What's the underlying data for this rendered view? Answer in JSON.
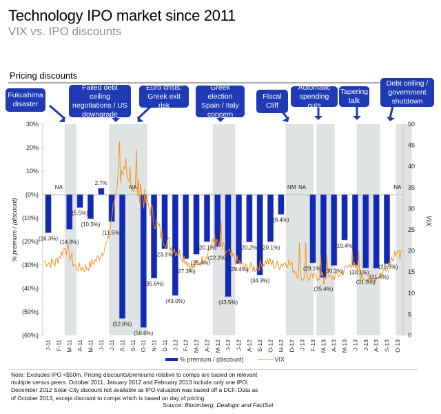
{
  "header": {
    "title": "Technology IPO market since 2011",
    "subtitle": "VIX vs. IPO discounts",
    "section": "Pricing discounts"
  },
  "colors": {
    "bar": "#1229b3",
    "vix": "#f7941d",
    "shade": "#dfe3e3",
    "callout": "#1e3ab4"
  },
  "callouts": [
    {
      "text": "Fukushima disaster",
      "lines": [
        "Fukushima",
        "disaster"
      ],
      "month": "M-11"
    },
    {
      "text": "Failed debt ceiling negotiations / US downgrade",
      "lines": [
        "Failed debt ceiling",
        "negotiations / US",
        "downgrade"
      ],
      "month": "A-11"
    },
    {
      "text": "Euro crisis: Greek exit risk",
      "lines": [
        "Euro crisis:",
        "Greek exit risk"
      ],
      "month": "S-11"
    },
    {
      "text": "Greek election Spain / Italy concern",
      "lines": [
        "Greek election",
        "Spain / Italy",
        "concern"
      ],
      "month": "M-12"
    },
    {
      "text": "Fiscal Cliff",
      "lines": [
        "Fiscal",
        "Cliff"
      ],
      "month": "D-12"
    },
    {
      "text": "Automatic spending cuts",
      "lines": [
        "Automatic",
        "spending cuts"
      ],
      "month": "M-13"
    },
    {
      "text": "Tapering talk",
      "lines": [
        "Tapering",
        "talk"
      ],
      "month": "J-13"
    },
    {
      "text": "Debt ceiling / government shutdown",
      "lines": [
        "Debt ceiling /",
        "government",
        "shutdown"
      ],
      "month": "O-13"
    }
  ],
  "legend": {
    "bar_label": "% premium / (discount)",
    "line_label": "VIX"
  },
  "note": "Note: Excludes IPO <$50m. Pricing discounts/premiums relative to comps are based on relevant multiple versus peers. October 2011, January 2012  and February 2013 include only one IPO. December 2012 Solar-City discount not available as IPO valuation was based off a DCF. Data as of October 2013, except discount to comps which is based on day of pricing.",
  "source": "Source: Bloomberg, Dealogic and FactSet",
  "chart_data": {
    "type": "bar",
    "title": "VIX vs. IPO discounts",
    "xlabel": "",
    "ylabel": "% premium / (discount)",
    "y2label": "VIX",
    "ylim": [
      -60,
      30
    ],
    "y2lim": [
      0,
      50
    ],
    "yticks": [
      "30%",
      "20%",
      "10%",
      "(0%)",
      "(10%)",
      "(20%)",
      "(30%)",
      "(40%)",
      "(50%)",
      "(60%)"
    ],
    "y2ticks": [
      "50",
      "45",
      "40",
      "35",
      "30",
      "25",
      "20",
      "15",
      "10",
      "5",
      "0"
    ],
    "grid": false,
    "legend_position": "bottom",
    "categories": [
      "J-11",
      "F-11",
      "M-11",
      "A-11",
      "M-11",
      "J-11",
      "J-11",
      "A-11",
      "S-11",
      "O-11",
      "N-11",
      "D-11",
      "J-12",
      "F-12",
      "M-12",
      "A-12",
      "M-12",
      "J-12",
      "J-12",
      "A-12",
      "S-12",
      "O-12",
      "N-12",
      "D-12",
      "J-13",
      "F-13",
      "M-13",
      "A-13",
      "M-13",
      "J-13",
      "J-13",
      "A-13",
      "S-13",
      "O-13"
    ],
    "series": [
      {
        "name": "% premium / (discount)",
        "type": "bar",
        "axis": "left",
        "values": [
          -16.3,
          null,
          -14.8,
          -5.5,
          -10.3,
          2.7,
          -11.5,
          -52.8,
          null,
          -56.6,
          -35.6,
          -23.1,
          -43.0,
          -27.3,
          -25.4,
          -20.1,
          -22.2,
          -43.5,
          -29.4,
          -20.2,
          -34.3,
          -20.1,
          -8.4,
          null,
          null,
          -29.1,
          -35.4,
          -30.2,
          -19.4,
          -30.1,
          -31.3,
          -31.4,
          -29.5,
          null
        ],
        "labels": [
          "(16.3%)",
          "NA",
          "(14.8%)",
          "(5.5%)",
          "(10.3%)",
          "2.7%",
          "(11.5%)",
          "(52.8%)",
          "NA",
          "(56.6%)",
          "(35.6%)",
          "(23.1%)",
          "(43.0%)",
          "(27.3%)",
          "(25.4%)",
          "(20.1%)",
          "(22.2%)",
          "(43.5%)",
          "(29.4%)",
          "(20.2%)",
          "(34.3%)",
          "(20.1%)",
          "(8.4%)",
          "NM",
          "NA",
          "(29.1%)",
          "(35.4%)",
          "(30.2%)",
          "(19.4%)",
          "(30.1%)",
          "(31.3%)",
          "(31.4%)",
          "(29.5%)",
          "NA"
        ]
      },
      {
        "name": "VIX",
        "type": "line",
        "axis": "right",
        "monthly_approx": [
          17.5,
          17.0,
          21.0,
          16.0,
          16.0,
          18.0,
          22.0,
          38.0,
          36.0,
          34.0,
          30.0,
          24.0,
          21.0,
          19.0,
          16.0,
          18.0,
          22.0,
          20.0,
          18.0,
          16.0,
          16.0,
          17.5,
          16.5,
          17.5,
          14.5,
          13.5,
          14.0,
          13.5,
          14.5,
          17.0,
          14.0,
          13.0,
          15.0,
          19.0
        ]
      }
    ],
    "shaded_months": [
      "M-11",
      "A-11",
      "S-11",
      "O-11",
      "M-12",
      "J-12",
      "D-12",
      "J-13",
      "M-13",
      "J-13",
      "J-13",
      "O-13"
    ]
  }
}
